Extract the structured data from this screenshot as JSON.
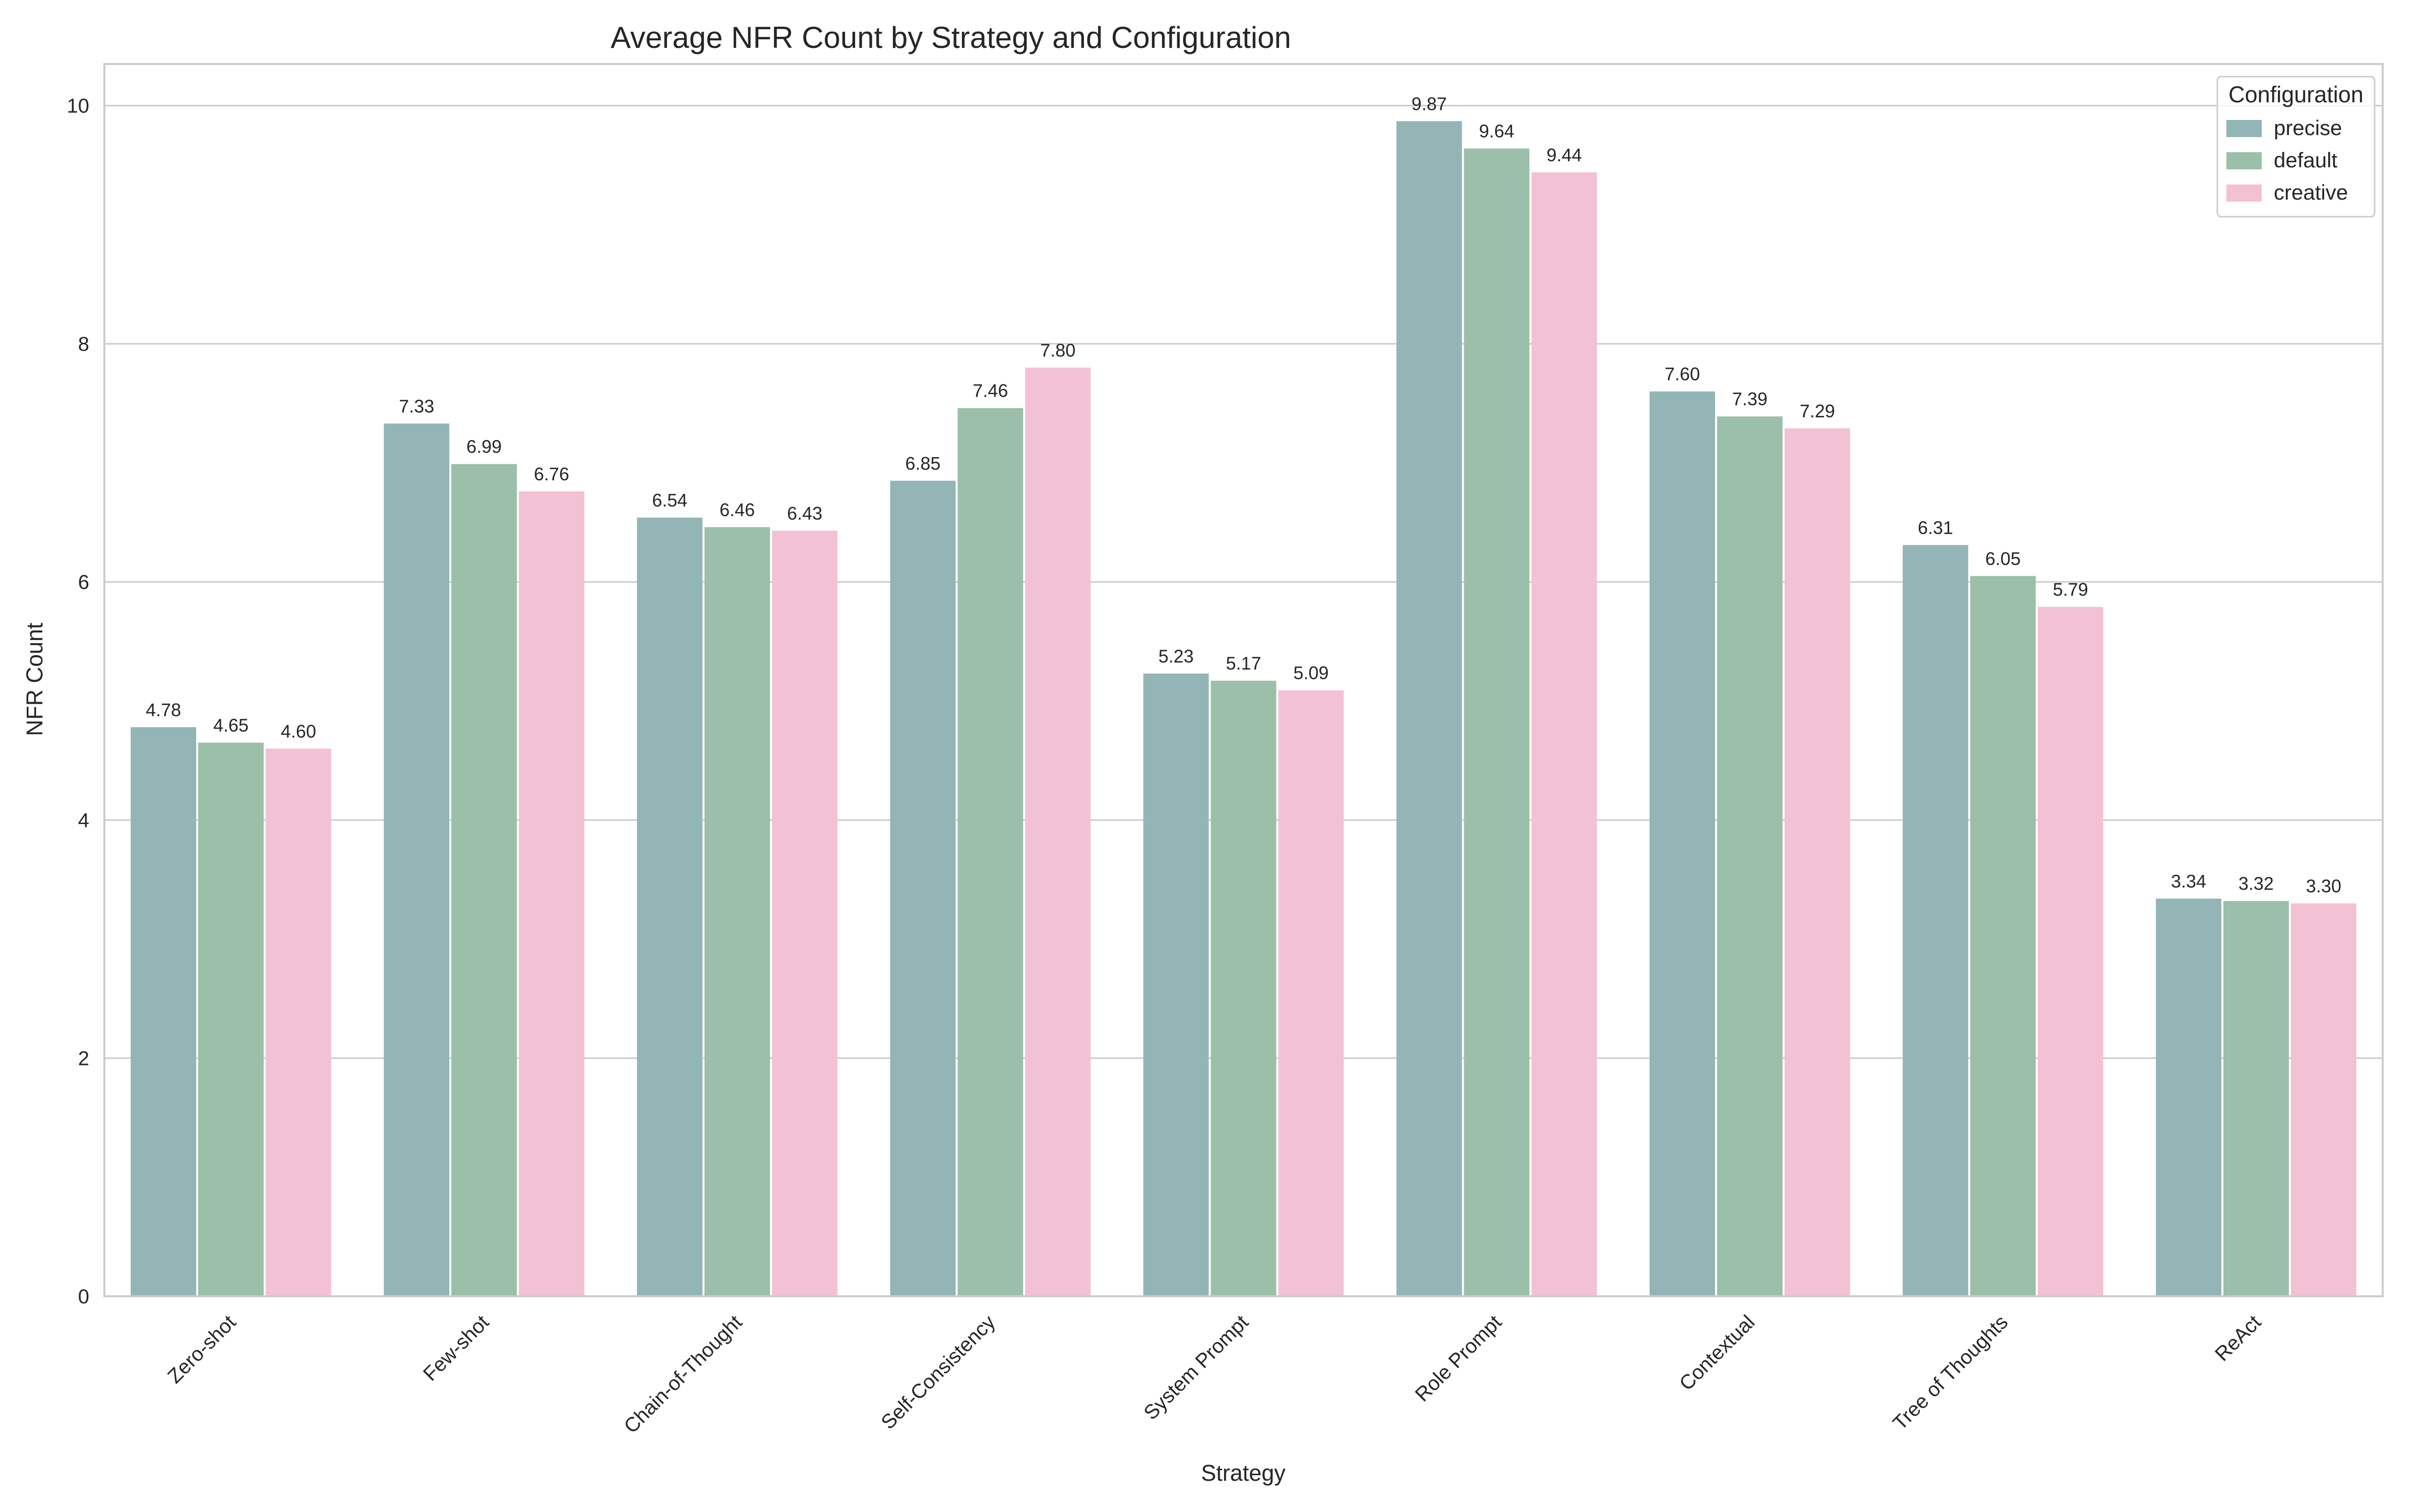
{
  "chart_data": {
    "type": "bar",
    "title": "Average NFR Count by Strategy and Configuration",
    "xlabel": "Strategy",
    "ylabel": "NFR Count",
    "ylim": [
      0,
      10.35
    ],
    "yticks": [
      0,
      2,
      4,
      6,
      8,
      10
    ],
    "grid": "horizontal",
    "legend": {
      "title": "Configuration",
      "placement": "top-right"
    },
    "categories": [
      "Zero-shot",
      "Few-shot",
      "Chain-of-Thought",
      "Self-Consistency",
      "System Prompt",
      "Role Prompt",
      "Contextual",
      "Tree of Thoughts",
      "ReAct"
    ],
    "series": [
      {
        "name": "precise",
        "color": "#93b5b5",
        "values": [
          4.78,
          7.33,
          6.54,
          6.85,
          5.23,
          9.87,
          7.6,
          6.31,
          3.34
        ],
        "labels": [
          "4.78",
          "7.33",
          "6.54",
          "6.85",
          "5.23",
          "9.87",
          "7.60",
          "6.31",
          "3.34"
        ]
      },
      {
        "name": "default",
        "color": "#9bbfa8",
        "values": [
          4.65,
          6.99,
          6.46,
          7.46,
          5.17,
          9.64,
          7.39,
          6.05,
          3.32
        ],
        "labels": [
          "4.65",
          "6.99",
          "6.46",
          "7.46",
          "5.17",
          "9.64",
          "7.39",
          "6.05",
          "3.32"
        ]
      },
      {
        "name": "creative",
        "color": "#f3c1d4",
        "values": [
          4.6,
          6.76,
          6.43,
          7.8,
          5.09,
          9.44,
          7.29,
          5.79,
          3.3
        ],
        "labels": [
          "4.60",
          "6.76",
          "6.43",
          "7.80",
          "5.09",
          "9.44",
          "7.29",
          "5.79",
          "3.30"
        ]
      }
    ]
  }
}
